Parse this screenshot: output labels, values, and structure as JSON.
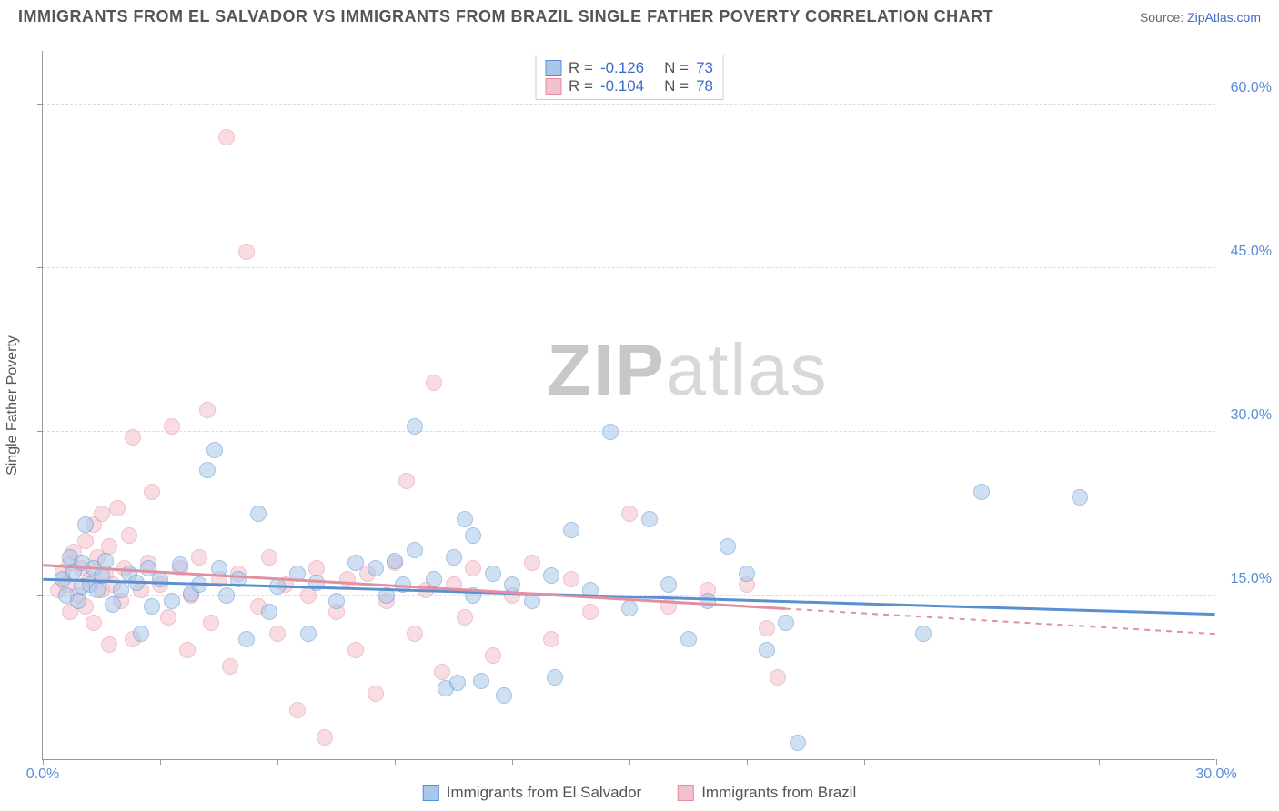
{
  "title": "IMMIGRANTS FROM EL SALVADOR VS IMMIGRANTS FROM BRAZIL SINGLE FATHER POVERTY CORRELATION CHART",
  "source_label": "Source:",
  "source_name": "ZipAtlas.com",
  "y_axis_label": "Single Father Poverty",
  "watermark_a": "ZIP",
  "watermark_b": "atlas",
  "chart": {
    "type": "scatter",
    "xlim": [
      0,
      30
    ],
    "ylim": [
      0,
      65
    ],
    "x_ticks": [
      0.0,
      30.0
    ],
    "x_tick_labels": [
      "0.0%",
      "30.0%"
    ],
    "x_minor_ticks": [
      3,
      6,
      9,
      12,
      15,
      18,
      21,
      24,
      27
    ],
    "y_ticks": [
      15.0,
      30.0,
      45.0,
      60.0
    ],
    "y_tick_labels": [
      "15.0%",
      "30.0%",
      "45.0%",
      "60.0%"
    ],
    "background_color": "#ffffff",
    "grid_color": "#dddddd",
    "marker_radius": 9,
    "marker_opacity": 0.55,
    "series": [
      {
        "name": "Immigrants from El Salvador",
        "color_fill": "#a9c7ea",
        "color_stroke": "#5b8fd0",
        "R": "-0.126",
        "N": "73",
        "trend": {
          "y_at_x0": 16.5,
          "y_at_x30": 13.3,
          "dash_after_x": 30
        },
        "points": [
          [
            0.5,
            16.5
          ],
          [
            0.6,
            15.0
          ],
          [
            0.7,
            18.5
          ],
          [
            0.8,
            17.2
          ],
          [
            0.9,
            14.5
          ],
          [
            1.0,
            15.8
          ],
          [
            1.0,
            18.0
          ],
          [
            1.1,
            21.5
          ],
          [
            1.2,
            16.0
          ],
          [
            1.3,
            17.5
          ],
          [
            1.4,
            15.5
          ],
          [
            1.5,
            16.8
          ],
          [
            1.6,
            18.2
          ],
          [
            1.8,
            14.2
          ],
          [
            2.0,
            15.5
          ],
          [
            2.2,
            17.0
          ],
          [
            2.4,
            16.2
          ],
          [
            2.5,
            11.5
          ],
          [
            2.7,
            17.5
          ],
          [
            2.8,
            14.0
          ],
          [
            3.0,
            16.5
          ],
          [
            3.3,
            14.5
          ],
          [
            3.5,
            17.8
          ],
          [
            3.8,
            15.2
          ],
          [
            4.0,
            16.0
          ],
          [
            4.2,
            26.5
          ],
          [
            4.4,
            28.3
          ],
          [
            4.5,
            17.5
          ],
          [
            4.7,
            15.0
          ],
          [
            5.0,
            16.5
          ],
          [
            5.5,
            22.5
          ],
          [
            5.2,
            11.0
          ],
          [
            5.8,
            13.5
          ],
          [
            6.0,
            15.8
          ],
          [
            6.5,
            17.0
          ],
          [
            6.8,
            11.5
          ],
          [
            7.0,
            16.2
          ],
          [
            7.5,
            14.5
          ],
          [
            8.0,
            18.0
          ],
          [
            8.5,
            17.5
          ],
          [
            8.8,
            15.0
          ],
          [
            9.0,
            18.2
          ],
          [
            9.2,
            16.0
          ],
          [
            9.5,
            30.5
          ],
          [
            9.5,
            19.2
          ],
          [
            10.0,
            16.5
          ],
          [
            10.3,
            6.5
          ],
          [
            10.5,
            18.5
          ],
          [
            10.6,
            7.0
          ],
          [
            10.8,
            22.0
          ],
          [
            11.0,
            20.5
          ],
          [
            11.2,
            7.2
          ],
          [
            11.0,
            15.0
          ],
          [
            11.5,
            17.0
          ],
          [
            11.8,
            5.8
          ],
          [
            12.0,
            16.0
          ],
          [
            12.5,
            14.5
          ],
          [
            13.0,
            16.8
          ],
          [
            13.1,
            7.5
          ],
          [
            13.5,
            21.0
          ],
          [
            14.0,
            15.5
          ],
          [
            14.5,
            30.0
          ],
          [
            15.0,
            13.8
          ],
          [
            15.5,
            22.0
          ],
          [
            16.0,
            16.0
          ],
          [
            16.5,
            11.0
          ],
          [
            17.0,
            14.5
          ],
          [
            17.5,
            19.5
          ],
          [
            18.0,
            17.0
          ],
          [
            18.5,
            10.0
          ],
          [
            19.0,
            12.5
          ],
          [
            19.3,
            1.5
          ],
          [
            22.5,
            11.5
          ],
          [
            24.0,
            24.5
          ],
          [
            26.5,
            24.0
          ]
        ]
      },
      {
        "name": "Immigrants from Brazil",
        "color_fill": "#f3c1cb",
        "color_stroke": "#e28fa2",
        "R": "-0.104",
        "N": "78",
        "trend": {
          "y_at_x0": 17.8,
          "y_at_x30": 11.5,
          "dash_after_x": 19
        },
        "points": [
          [
            0.4,
            15.5
          ],
          [
            0.5,
            17.2
          ],
          [
            0.6,
            16.0
          ],
          [
            0.7,
            18.0
          ],
          [
            0.7,
            13.5
          ],
          [
            0.8,
            19.0
          ],
          [
            0.9,
            15.0
          ],
          [
            1.0,
            17.5
          ],
          [
            1.1,
            20.0
          ],
          [
            1.1,
            14.0
          ],
          [
            1.2,
            16.5
          ],
          [
            1.3,
            21.5
          ],
          [
            1.3,
            12.5
          ],
          [
            1.4,
            18.5
          ],
          [
            1.5,
            22.5
          ],
          [
            1.5,
            15.5
          ],
          [
            1.6,
            17.0
          ],
          [
            1.7,
            19.5
          ],
          [
            1.7,
            10.5
          ],
          [
            1.8,
            16.0
          ],
          [
            1.9,
            23.0
          ],
          [
            2.0,
            14.5
          ],
          [
            2.1,
            17.5
          ],
          [
            2.2,
            20.5
          ],
          [
            2.3,
            29.5
          ],
          [
            2.3,
            11.0
          ],
          [
            2.5,
            15.5
          ],
          [
            2.7,
            18.0
          ],
          [
            2.8,
            24.5
          ],
          [
            3.0,
            16.0
          ],
          [
            3.2,
            13.0
          ],
          [
            3.3,
            30.5
          ],
          [
            3.5,
            17.5
          ],
          [
            3.7,
            10.0
          ],
          [
            3.8,
            15.0
          ],
          [
            4.0,
            18.5
          ],
          [
            4.2,
            32.0
          ],
          [
            4.3,
            12.5
          ],
          [
            4.5,
            16.5
          ],
          [
            4.7,
            57.0
          ],
          [
            4.8,
            8.5
          ],
          [
            5.0,
            17.0
          ],
          [
            5.2,
            46.5
          ],
          [
            5.5,
            14.0
          ],
          [
            5.8,
            18.5
          ],
          [
            6.0,
            11.5
          ],
          [
            6.2,
            16.0
          ],
          [
            6.5,
            4.5
          ],
          [
            6.8,
            15.0
          ],
          [
            7.0,
            17.5
          ],
          [
            7.2,
            2.0
          ],
          [
            7.5,
            13.5
          ],
          [
            7.8,
            16.5
          ],
          [
            8.0,
            10.0
          ],
          [
            8.3,
            17.0
          ],
          [
            8.5,
            6.0
          ],
          [
            8.8,
            14.5
          ],
          [
            9.0,
            18.0
          ],
          [
            9.3,
            25.5
          ],
          [
            9.5,
            11.5
          ],
          [
            9.8,
            15.5
          ],
          [
            10.0,
            34.5
          ],
          [
            10.2,
            8.0
          ],
          [
            10.5,
            16.0
          ],
          [
            10.8,
            13.0
          ],
          [
            11.0,
            17.5
          ],
          [
            11.5,
            9.5
          ],
          [
            12.0,
            15.0
          ],
          [
            12.5,
            18.0
          ],
          [
            13.0,
            11.0
          ],
          [
            13.5,
            16.5
          ],
          [
            14.0,
            13.5
          ],
          [
            15.0,
            22.5
          ],
          [
            16.0,
            14.0
          ],
          [
            17.0,
            15.5
          ],
          [
            18.0,
            16.0
          ],
          [
            18.5,
            12.0
          ],
          [
            18.8,
            7.5
          ]
        ]
      }
    ]
  },
  "legend_R_label": "R  =",
  "legend_N_label": "N  ="
}
